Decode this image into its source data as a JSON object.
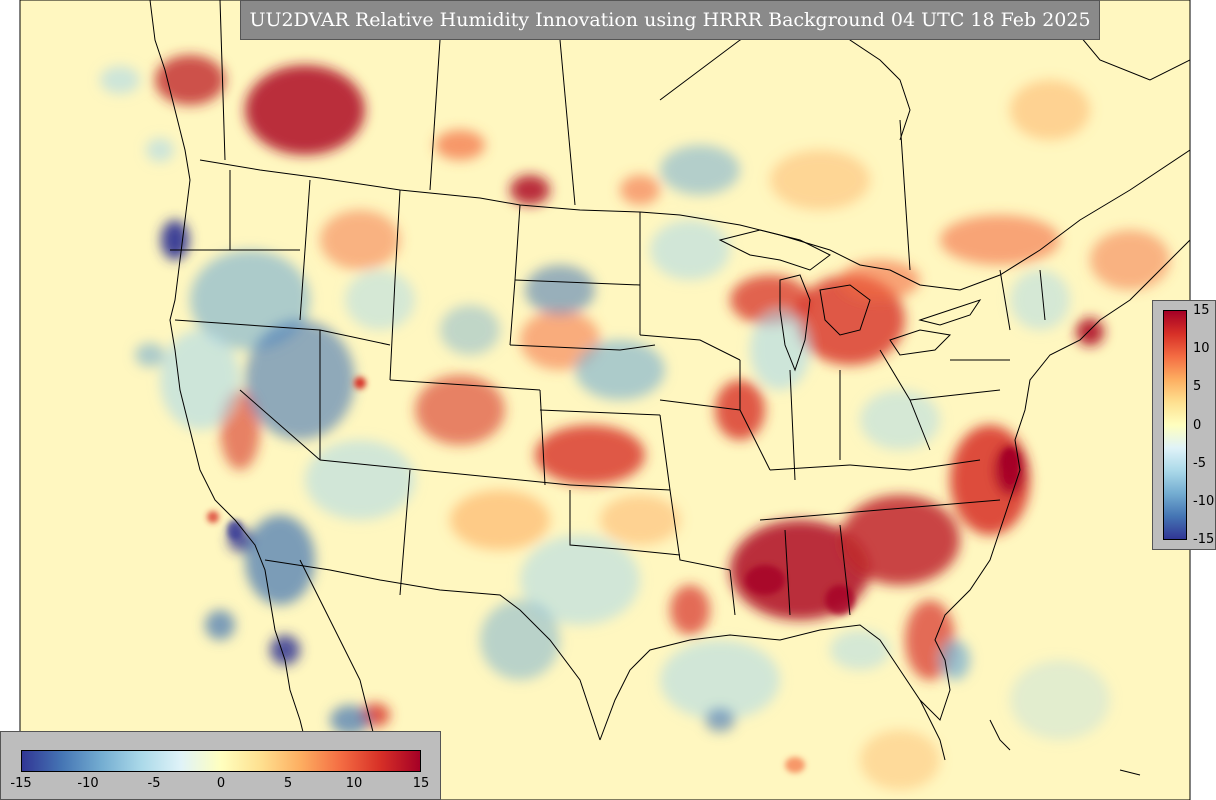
{
  "title": "UU2DVAR Relative Humidity Innovation using HRRR Background 04 UTC 18 Feb 2025",
  "colorbar": {
    "min": -15,
    "max": 15,
    "vertical_ticks": [
      "15",
      "10",
      "5",
      "0",
      "-5",
      "-10",
      "-15"
    ],
    "horizontal_ticks": [
      "-15",
      "-10",
      "-5",
      "0",
      "5",
      "10",
      "15"
    ],
    "colormap": [
      "#313695",
      "#4575b4",
      "#74add1",
      "#abd9e9",
      "#e0f3f8",
      "#ffffbf",
      "#fee090",
      "#fdae61",
      "#f46d43",
      "#d73027",
      "#a50026"
    ]
  },
  "colors": {
    "background_field": "#fff7c0",
    "land_field": "#fdf3c4",
    "border": "#000000",
    "title_box": "#8a8a8a",
    "colorbar_box": "#bdbdbd"
  }
}
